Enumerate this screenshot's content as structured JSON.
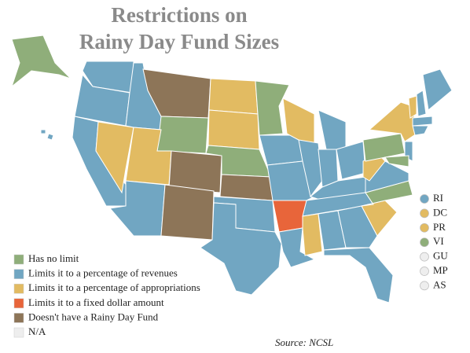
{
  "title": [
    "Restrictions on",
    "Rainy Day Fund Sizes"
  ],
  "legend": [
    {
      "label": "Has no limit",
      "color": "#8fae7a"
    },
    {
      "label": "Limits it to a percentage of revenues",
      "color": "#71a6c2"
    },
    {
      "label": "Limits it to a percentage of appropriations",
      "color": "#e2bb62"
    },
    {
      "label": "Limits it to a fixed dollar amount",
      "color": "#e8653a"
    },
    {
      "label": "Doesn't have a Rainy Day Fund",
      "color": "#8d7558"
    },
    {
      "label": "N/A",
      "color": "#eeeeee"
    }
  ],
  "territories": [
    {
      "label": "RI",
      "color": "#71a6c2"
    },
    {
      "label": "DC",
      "color": "#e2bb62"
    },
    {
      "label": "PR",
      "color": "#e2bb62"
    },
    {
      "label": "VI",
      "color": "#8fae7a"
    },
    {
      "label": "GU",
      "color": "#eeeeee"
    },
    {
      "label": "MP",
      "color": "#eeeeee"
    },
    {
      "label": "AS",
      "color": "#eeeeee"
    }
  ],
  "source": "Source: NCSL"
}
